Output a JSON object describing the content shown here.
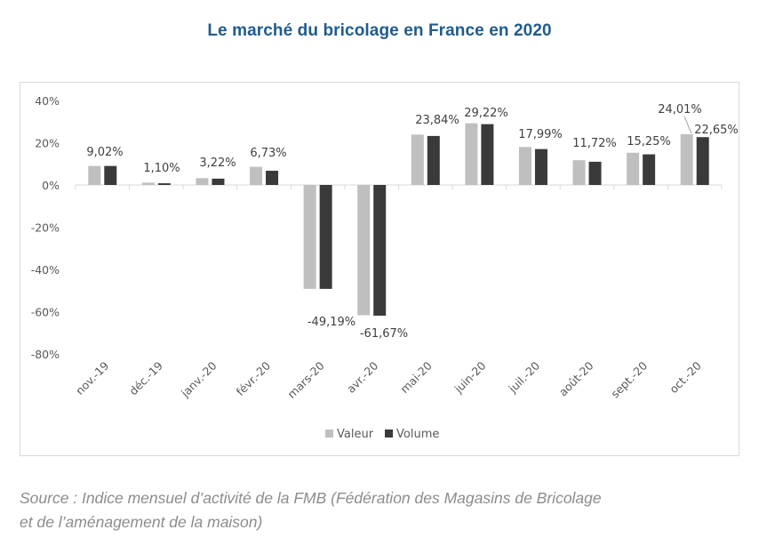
{
  "chart_data": {
    "type": "bar",
    "title": "Le marché du bricolage en France en 2020",
    "xlabel": "",
    "ylabel": "",
    "categories": [
      "nov.-19",
      "déc.-19",
      "janv.-20",
      "févr.-20",
      "mars-20",
      "avr.-20",
      "mai-20",
      "juin-20",
      "juil.-20",
      "août-20",
      "sept.-20",
      "oct.-20"
    ],
    "series": [
      {
        "name": "Valeur",
        "color": "#bfbfbf",
        "values": [
          9.02,
          1.1,
          3.22,
          8.6,
          -49.19,
          -61.67,
          23.84,
          29.22,
          17.99,
          11.72,
          15.25,
          24.01
        ]
      },
      {
        "name": "Volume",
        "color": "#3a3a3a",
        "values": [
          9.0,
          0.8,
          3.0,
          6.73,
          -49.2,
          -61.9,
          23.2,
          28.8,
          17.0,
          11.0,
          14.5,
          22.65
        ]
      }
    ],
    "data_labels": [
      {
        "category": "nov.-19",
        "text": "9,02%"
      },
      {
        "category": "déc.-19",
        "text": "1,10%"
      },
      {
        "category": "janv.-20",
        "text": "3,22%"
      },
      {
        "category": "févr.-20",
        "text": "6,73%"
      },
      {
        "category": "mars-20",
        "text": "-49,19%"
      },
      {
        "category": "avr.-20",
        "text": "-61,67%"
      },
      {
        "category": "mai-20",
        "text": "23,84%"
      },
      {
        "category": "juin-20",
        "text": "29,22%"
      },
      {
        "category": "juil.-20",
        "text": "17,99%"
      },
      {
        "category": "août-20",
        "text": "11,72%"
      },
      {
        "category": "sept.-20",
        "text": "15,25%"
      },
      {
        "category": "oct.-20",
        "text": "24,01%"
      },
      {
        "category": "oct.-20",
        "text": "22,65%"
      }
    ],
    "yticks": [
      40,
      20,
      0,
      -20,
      -40,
      -60,
      -80
    ],
    "ytick_labels": [
      "40%",
      "20%",
      "0%",
      "-20%",
      "-40%",
      "-60%",
      "-80%"
    ],
    "ylim": [
      -80,
      40
    ],
    "grid": false,
    "legend": {
      "position": "bottom",
      "entries": [
        "Valeur",
        "Volume"
      ]
    }
  },
  "source": {
    "line1": "Source : Indice mensuel d’activité de la FMB (Fédération des Magasins de Bricolage",
    "line2": "et de l’aménagement de la maison)"
  }
}
